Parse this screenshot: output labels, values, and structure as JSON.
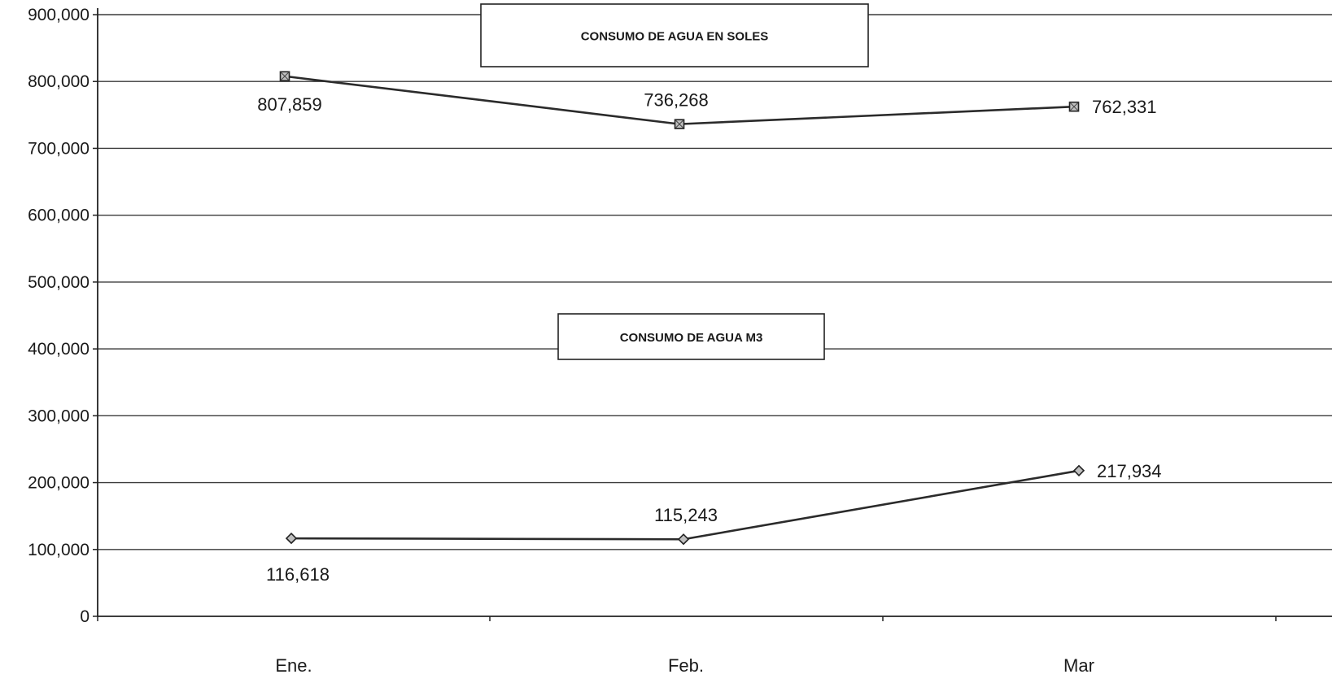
{
  "chart_data": {
    "type": "line",
    "categories": [
      "Ene.",
      "Feb.",
      "Mar"
    ],
    "ylim": [
      0,
      900000
    ],
    "yticks": [
      0,
      100000,
      200000,
      300000,
      400000,
      500000,
      600000,
      700000,
      800000,
      900000
    ],
    "ytick_labels": [
      "0",
      "100,000",
      "200,000",
      "300,000",
      "400,000",
      "500,000",
      "600,000",
      "700,000",
      "800,000",
      "900,000"
    ],
    "grid": true,
    "series": [
      {
        "name": "CONSUMO DE AGUA EN SOLES",
        "values": [
          807859,
          736268,
          762331
        ],
        "labels": [
          "807,859",
          "736,268",
          "762,331"
        ],
        "marker": "square",
        "color": "#2b2b2b"
      },
      {
        "name": "CONSUMO DE AGUA M3",
        "values": [
          116618,
          115243,
          217934
        ],
        "labels": [
          "116,618",
          "115,243",
          "217,934"
        ],
        "marker": "diamond",
        "color": "#2b2b2b"
      }
    ]
  }
}
